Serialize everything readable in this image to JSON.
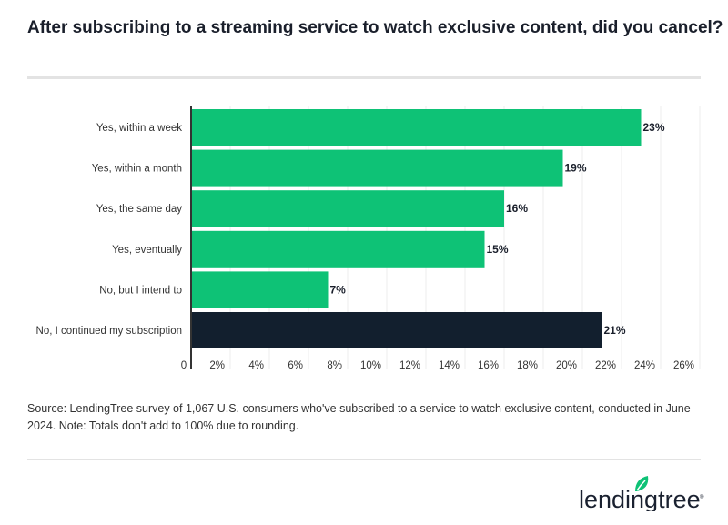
{
  "chart_data": {
    "type": "bar",
    "orientation": "horizontal",
    "title": "After subscribing to a streaming service to watch exclusive content, did you cancel?",
    "categories": [
      "Yes, within a week",
      "Yes, within a month",
      "Yes, the same day",
      "Yes, eventually",
      "No, but I intend to",
      "No, I continued my subscription"
    ],
    "values": [
      23,
      19,
      16,
      15,
      7,
      21
    ],
    "data_labels": [
      "23%",
      "19%",
      "16%",
      "15%",
      "7%",
      "21%"
    ],
    "bar_colors": [
      "#0ec276",
      "#0ec276",
      "#0ec276",
      "#0ec276",
      "#0ec276",
      "#121f2e"
    ],
    "xlim": [
      0,
      26
    ],
    "xticks": [
      0,
      2,
      4,
      6,
      8,
      10,
      12,
      14,
      16,
      18,
      20,
      22,
      24,
      26
    ],
    "xtick_labels": [
      "0",
      "2%",
      "4%",
      "6%",
      "8%",
      "10%",
      "12%",
      "14%",
      "16%",
      "18%",
      "20%",
      "22%",
      "24%",
      "26%"
    ],
    "grid": true
  },
  "source": "Source: LendingTree survey of 1,067 U.S. consumers who've subscribed to a service to watch exclusive content, conducted in June 2024. Note: Totals don't add to 100% due to rounding.",
  "logo": {
    "text": "lendingtree",
    "color": "#1a2130",
    "leaf_color": "#0ec276"
  }
}
